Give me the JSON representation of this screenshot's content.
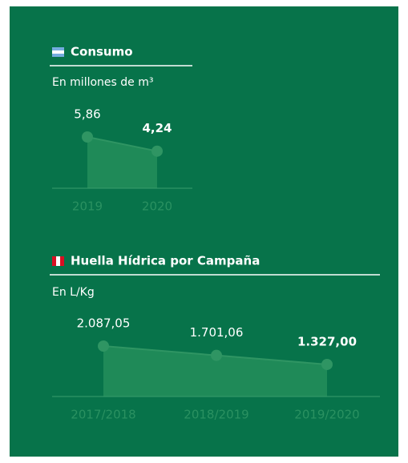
{
  "chart_data": [
    {
      "type": "line",
      "title": "Consumo",
      "subtitle": "En millones de m³",
      "categories": [
        "2019",
        "2020"
      ],
      "values": [
        5.86,
        4.24
      ],
      "value_labels": [
        "5,86",
        "4,24"
      ],
      "color": "#2f9563",
      "area_color": "#1f8a58"
    },
    {
      "type": "line",
      "title": "Huella Hídrica por Campaña",
      "subtitle": "En L/Kg",
      "categories": [
        "2017/2018",
        "2018/2019",
        "2019/2020"
      ],
      "values": [
        2087.05,
        1701.06,
        1327.0
      ],
      "value_labels": [
        "2.087,05",
        "1.701,06",
        "1.327,00"
      ],
      "color": "#2f9563",
      "area_color": "#1f8a58"
    }
  ]
}
